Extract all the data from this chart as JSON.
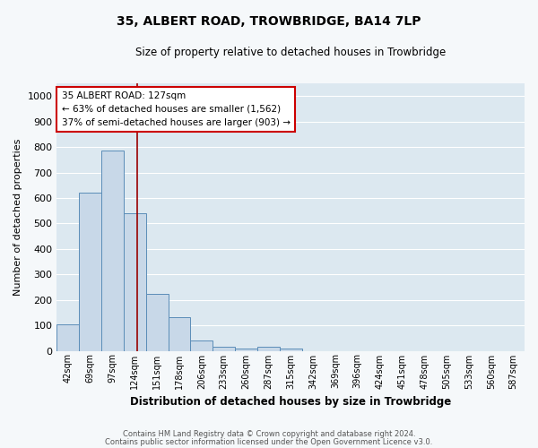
{
  "title1": "35, ALBERT ROAD, TROWBRIDGE, BA14 7LP",
  "title2": "Size of property relative to detached houses in Trowbridge",
  "xlabel": "Distribution of detached houses by size in Trowbridge",
  "ylabel": "Number of detached properties",
  "bar_labels": [
    "42sqm",
    "69sqm",
    "97sqm",
    "124sqm",
    "151sqm",
    "178sqm",
    "206sqm",
    "233sqm",
    "260sqm",
    "287sqm",
    "315sqm",
    "342sqm",
    "369sqm",
    "396sqm",
    "424sqm",
    "451sqm",
    "478sqm",
    "505sqm",
    "533sqm",
    "560sqm",
    "587sqm"
  ],
  "bar_values": [
    103,
    621,
    787,
    541,
    222,
    133,
    40,
    15,
    10,
    15,
    10,
    0,
    0,
    0,
    0,
    0,
    0,
    0,
    0,
    0,
    0
  ],
  "bar_color": "#c8d8e8",
  "bar_edge_color": "#5b8db8",
  "plot_bg_color": "#dce8f0",
  "fig_bg_color": "#f5f8fa",
  "grid_color": "#ffffff",
  "vline_color": "#990000",
  "vline_x_index": 3.11,
  "annotation_title": "35 ALBERT ROAD: 127sqm",
  "annotation_line1": "← 63% of detached houses are smaller (1,562)",
  "annotation_line2": "37% of semi-detached houses are larger (903) →",
  "annotation_box_facecolor": "#ffffff",
  "annotation_box_edgecolor": "#cc0000",
  "ylim": [
    0,
    1050
  ],
  "yticks": [
    0,
    100,
    200,
    300,
    400,
    500,
    600,
    700,
    800,
    900,
    1000
  ],
  "footer1": "Contains HM Land Registry data © Crown copyright and database right 2024.",
  "footer2": "Contains public sector information licensed under the Open Government Licence v3.0."
}
